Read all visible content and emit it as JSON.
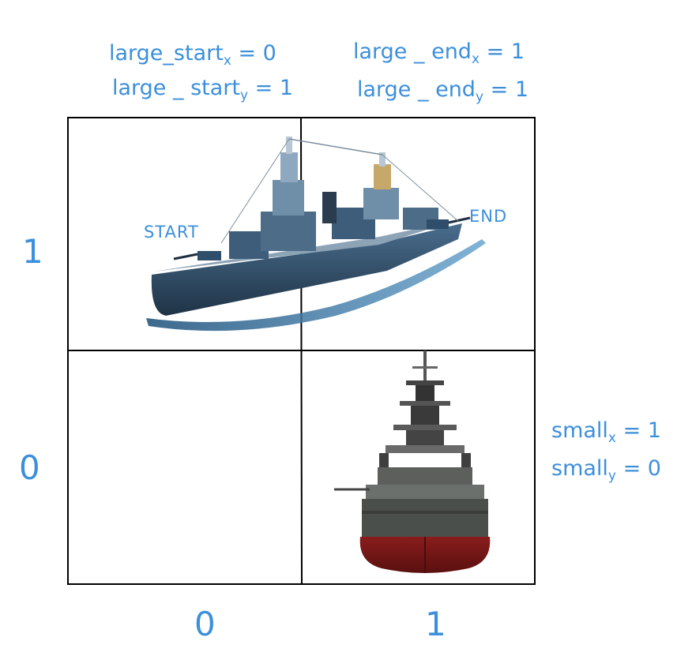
{
  "annotations": {
    "large_start_x": {
      "prefix": "large_start",
      "sub": "x",
      "value": "= 0"
    },
    "large_start_y": {
      "prefix": "large _ start",
      "sub": "y",
      "value": "= 1"
    },
    "large_end_x": {
      "prefix": "large _ end",
      "sub": "x",
      "value": "= 1"
    },
    "large_end_y": {
      "prefix": "large _ end",
      "sub": "y",
      "value": "= 1"
    },
    "small_x": {
      "prefix": "small",
      "sub": "x",
      "value": "= 1"
    },
    "small_y": {
      "prefix": "small",
      "sub": "y",
      "value": "= 0"
    }
  },
  "labels": {
    "start": "START",
    "end": "END"
  },
  "axes": {
    "y_ticks": [
      "1",
      "0"
    ],
    "x_ticks": [
      "0",
      "1"
    ]
  },
  "grid": {
    "cells": [
      {
        "row": 1,
        "col": 0,
        "content": "large-ship-start"
      },
      {
        "row": 1,
        "col": 1,
        "content": "large-ship-end"
      },
      {
        "row": 0,
        "col": 0,
        "content": "empty"
      },
      {
        "row": 0,
        "col": 1,
        "content": "small-ship"
      }
    ]
  },
  "colors": {
    "annotation": "#3c8fdb",
    "grid_line": "#000000",
    "hull_red": "#7a1515",
    "ship_blue": "#2e4e6b"
  }
}
